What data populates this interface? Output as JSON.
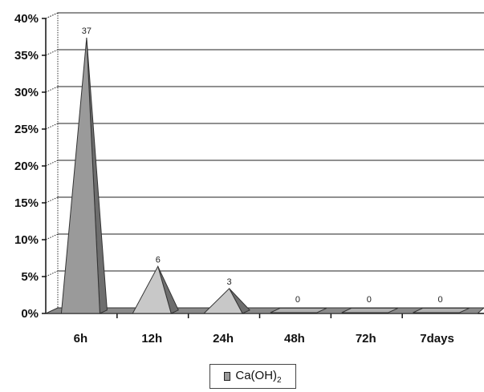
{
  "chart_data": {
    "type": "bar",
    "categories": [
      "6h",
      "12h",
      "24h",
      "48h",
      "72h",
      "7days"
    ],
    "series": [
      {
        "name": "Ca(OH)",
        "name_subscript": "2",
        "values": [
          37,
          6,
          3,
          0,
          0,
          0
        ],
        "labels": [
          "37",
          "6",
          "3",
          "0",
          "0",
          "0"
        ]
      }
    ],
    "yticks": [
      "0%",
      "5%",
      "10%",
      "15%",
      "20%",
      "25%",
      "30%",
      "35%",
      "40%"
    ],
    "ylim": [
      0,
      40
    ],
    "ytick_step": 5,
    "grid": true,
    "legend_position": "bottom",
    "style": "3d-pyramid",
    "colors": [
      "#9a9a9a",
      "#c8c8c8",
      "#c8c8c8",
      "#9a9a9a",
      "#9a9a9a",
      "#9a9a9a"
    ]
  }
}
